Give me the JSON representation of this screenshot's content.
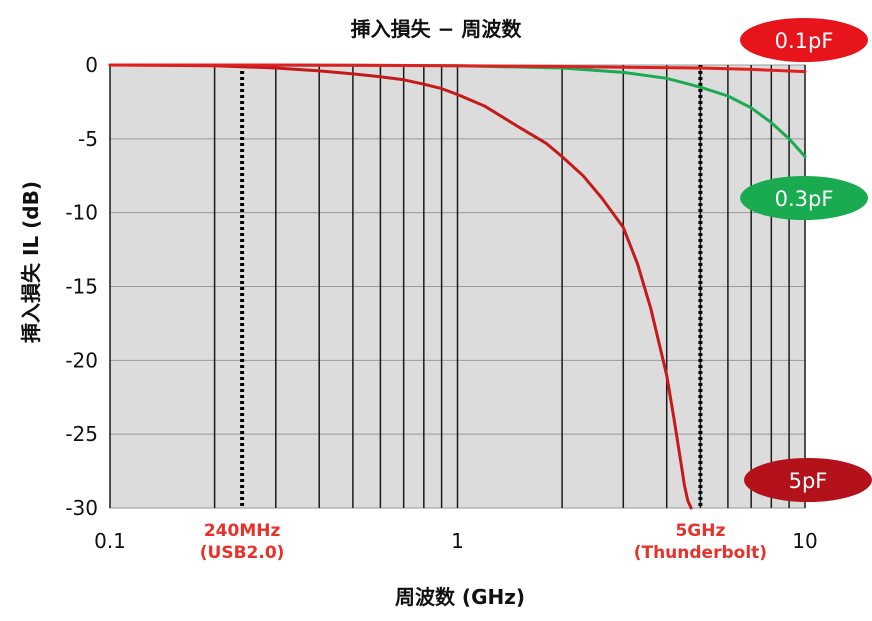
{
  "chart_data": {
    "type": "line",
    "title": "挿入損失 − 周波数",
    "xlabel": "周波数 (GHz)",
    "ylabel": "挿入損失 IL (dB)",
    "x_scale": "log",
    "xlim": [
      0.1,
      10
    ],
    "ylim": [
      -30,
      0
    ],
    "grid": true,
    "x_ticks": [
      {
        "value": 0.1,
        "label": "0.1"
      },
      {
        "value": 1,
        "label": "1"
      },
      {
        "value": 10,
        "label": "10"
      }
    ],
    "y_ticks": [
      {
        "value": 0,
        "label": "0"
      },
      {
        "value": -5,
        "label": "-5"
      },
      {
        "value": -10,
        "label": "-10"
      },
      {
        "value": -15,
        "label": "-15"
      },
      {
        "value": -20,
        "label": "-20"
      },
      {
        "value": -25,
        "label": "-25"
      },
      {
        "value": -30,
        "label": "-30"
      }
    ],
    "markers": [
      {
        "x": 0.24,
        "label_line1": "240MHz",
        "label_line2": "(USB2.0)",
        "color": "#e8312a"
      },
      {
        "x": 5,
        "label_line1": "5GHz",
        "label_line2": "(Thunderbolt)",
        "color": "#e8312a"
      }
    ],
    "series": [
      {
        "name": "0.1pF",
        "color": "#e02020",
        "label_bg": "#e8141c",
        "x": [
          0.1,
          0.3,
          1,
          2,
          3,
          5,
          7,
          10
        ],
        "y": [
          0,
          0,
          -0.05,
          -0.1,
          -0.15,
          -0.2,
          -0.3,
          -0.45
        ]
      },
      {
        "name": "0.3pF",
        "color": "#1aab50",
        "label_bg": "#1aab50",
        "x": [
          0.1,
          0.5,
          1,
          2,
          3,
          4,
          5,
          6,
          7,
          8,
          9,
          10
        ],
        "y": [
          0,
          -0.02,
          -0.05,
          -0.2,
          -0.5,
          -0.9,
          -1.5,
          -2.1,
          -2.9,
          -3.9,
          -5.0,
          -6.2
        ]
      },
      {
        "name": "5pF",
        "color": "#c41a1a",
        "label_bg": "#b3121a",
        "x": [
          0.1,
          0.2,
          0.3,
          0.4,
          0.5,
          0.6,
          0.7,
          0.8,
          0.9,
          1.0,
          1.2,
          1.5,
          1.8,
          2.0,
          2.3,
          2.6,
          3.0,
          3.3,
          3.6,
          4.0,
          4.2,
          4.4,
          4.5,
          4.6,
          4.7
        ],
        "y": [
          0,
          -0.05,
          -0.2,
          -0.4,
          -0.6,
          -0.8,
          -1.0,
          -1.3,
          -1.6,
          -2.0,
          -2.8,
          -4.2,
          -5.3,
          -6.2,
          -7.5,
          -9.0,
          -11.0,
          -13.5,
          -16.5,
          -21.0,
          -24.0,
          -27.0,
          -28.5,
          -29.5,
          -30.0
        ]
      }
    ]
  }
}
